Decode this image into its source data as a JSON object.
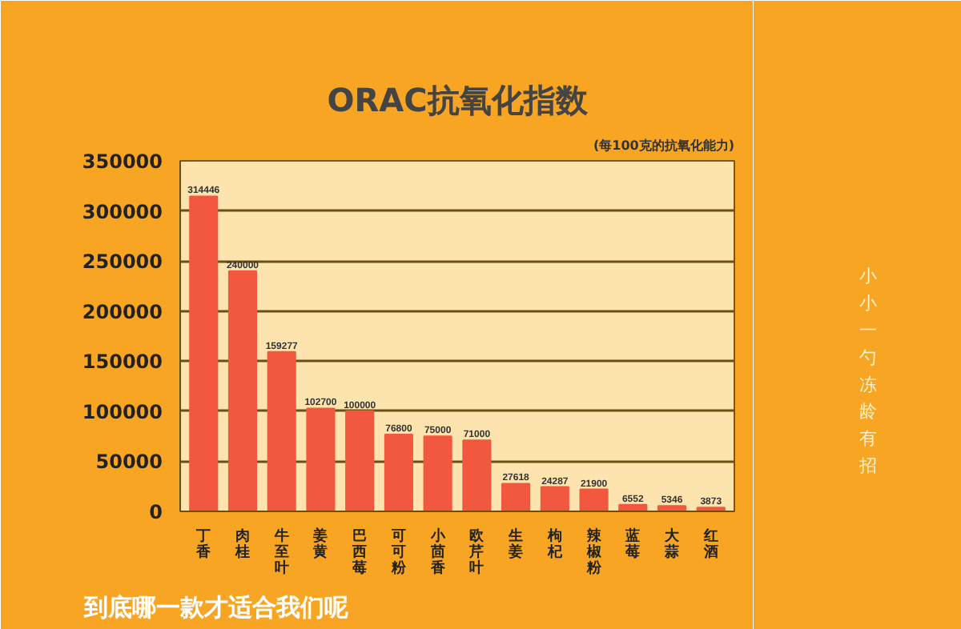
{
  "chart_data": {
    "type": "bar",
    "title": "ORAC抗氧化指数",
    "subtitle": "(每100克的抗氧化能力)",
    "categories": [
      "丁香",
      "肉桂",
      "牛至叶",
      "姜黄",
      "巴西莓",
      "可可粉",
      "小茴香",
      "欧芹叶",
      "生姜",
      "枸杞",
      "辣椒粉",
      "蓝莓",
      "大蒜",
      "红酒"
    ],
    "values": [
      314446,
      240000,
      159277,
      102700,
      100000,
      76800,
      75000,
      71000,
      27618,
      24287,
      21900,
      6552,
      5346,
      3873
    ],
    "color": "#f2573f",
    "ylim": [
      0,
      350000
    ],
    "yticks": [
      0,
      50000,
      100000,
      150000,
      200000,
      250000,
      300000,
      350000
    ],
    "grid": "y",
    "data_labels": true,
    "annotations": [
      "小小一勺冻龄有招",
      "到底哪一款才适合我们呢"
    ]
  }
}
